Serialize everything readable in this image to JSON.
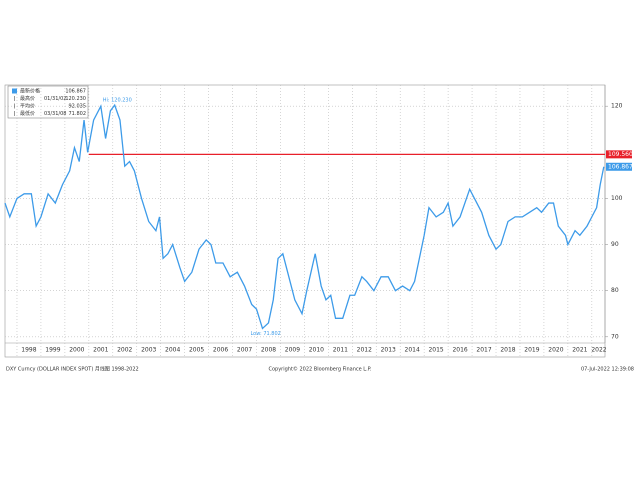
{
  "chart_data": {
    "type": "line",
    "legend": [
      {
        "name": "最新价格",
        "value": "106.867"
      },
      {
        "name": "最高价",
        "date": "01/31/02",
        "value": "120.230"
      },
      {
        "name": "平均价",
        "value": "92.035"
      },
      {
        "name": "最低价",
        "date": "03/31/08",
        "value": "71.802"
      }
    ],
    "annotations": [
      {
        "text": "Hi: 120.230",
        "x": 2002.08,
        "y": 120.23
      },
      {
        "text": "Low: 71.802",
        "x": 2008.25,
        "y": 71.802
      }
    ],
    "reference_line": {
      "value": 109.56,
      "label": "109.560",
      "color": "#e8202a",
      "start": 2001.0
    },
    "last_label": "106.867",
    "footer": {
      "left": "DXY Curncy (DOLLAR INDEX SPOT) 月线图 1998-2022",
      "center": "Copyright© 2022 Bloomberg Finance L.P.",
      "right": "07-Jul-2022 12:39:08"
    },
    "xlim": [
      1997.5,
      2022.55
    ],
    "xgrid": [
      1998,
      1999,
      2000,
      2001,
      2002,
      2003,
      2004,
      2005,
      2006,
      2007,
      2008,
      2009,
      2010,
      2011,
      2012,
      2013,
      2014,
      2015,
      2016,
      2017,
      2018,
      2019,
      2020,
      2021,
      2022
    ],
    "xticks": [
      {
        "value": 1998.5,
        "label": "1998"
      },
      {
        "value": 1999.5,
        "label": "1999"
      },
      {
        "value": 2000.5,
        "label": "2000"
      },
      {
        "value": 2001.5,
        "label": "2001"
      },
      {
        "value": 2002.5,
        "label": "2002"
      },
      {
        "value": 2003.5,
        "label": "2003"
      },
      {
        "value": 2004.5,
        "label": "2004"
      },
      {
        "value": 2005.5,
        "label": "2005"
      },
      {
        "value": 2006.5,
        "label": "2006"
      },
      {
        "value": 2007.5,
        "label": "2007"
      },
      {
        "value": 2008.5,
        "label": "2008"
      },
      {
        "value": 2009.5,
        "label": "2009"
      },
      {
        "value": 2010.5,
        "label": "2010"
      },
      {
        "value": 2011.5,
        "label": "2011"
      },
      {
        "value": 2012.5,
        "label": "2012"
      },
      {
        "value": 2013.5,
        "label": "2013"
      },
      {
        "value": 2014.5,
        "label": "2014"
      },
      {
        "value": 2015.5,
        "label": "2015"
      },
      {
        "value": 2016.5,
        "label": "2016"
      },
      {
        "value": 2017.5,
        "label": "2017"
      },
      {
        "value": 2018.5,
        "label": "2018"
      },
      {
        "value": 2019.5,
        "label": "2019"
      },
      {
        "value": 2020.5,
        "label": "2020"
      },
      {
        "value": 2021.5,
        "label": "2021"
      },
      {
        "value": 2022.3,
        "label": "2022"
      }
    ],
    "ylim": [
      69.3,
      124.6
    ],
    "yticks": [
      70,
      80,
      90,
      100,
      120
    ],
    "grid": true,
    "x": [
      1997.5,
      1997.7,
      1998.0,
      1998.3,
      1998.6,
      1998.8,
      1999.0,
      1999.3,
      1999.6,
      1999.9,
      2000.2,
      2000.4,
      2000.6,
      2000.8,
      2000.95,
      2001.2,
      2001.5,
      2001.7,
      2001.9,
      2002.08,
      2002.3,
      2002.5,
      2002.7,
      2002.9,
      2003.2,
      2003.5,
      2003.8,
      2003.95,
      2004.1,
      2004.3,
      2004.5,
      2004.8,
      2005.0,
      2005.3,
      2005.6,
      2005.9,
      2006.1,
      2006.3,
      2006.6,
      2006.9,
      2007.2,
      2007.5,
      2007.8,
      2008.0,
      2008.25,
      2008.5,
      2008.7,
      2008.9,
      2009.1,
      2009.3,
      2009.6,
      2009.9,
      2010.1,
      2010.45,
      2010.7,
      2010.9,
      2011.1,
      2011.3,
      2011.6,
      2011.9,
      2012.1,
      2012.4,
      2012.6,
      2012.9,
      2013.2,
      2013.5,
      2013.8,
      2014.1,
      2014.4,
      2014.6,
      2014.8,
      2015.0,
      2015.2,
      2015.5,
      2015.8,
      2016.0,
      2016.2,
      2016.5,
      2016.9,
      2017.1,
      2017.4,
      2017.7,
      2018.0,
      2018.2,
      2018.5,
      2018.8,
      2019.1,
      2019.4,
      2019.7,
      2019.9,
      2020.2,
      2020.4,
      2020.6,
      2020.9,
      2021.0,
      2021.3,
      2021.5,
      2021.8,
      2022.0,
      2022.2,
      2022.35,
      2022.5
    ],
    "series": [
      {
        "name": "最新价格",
        "color": "#3d9be9",
        "values": [
          99,
          96,
          100,
          101,
          101,
          94,
          96,
          101,
          99,
          103,
          106,
          111,
          108,
          117,
          110,
          117,
          120,
          113,
          119,
          120.23,
          117,
          107,
          108,
          106,
          100,
          95,
          93,
          96,
          87,
          88,
          90,
          85,
          82,
          84,
          89,
          91,
          90,
          86,
          86,
          83,
          84,
          81,
          77,
          76,
          71.802,
          73,
          78,
          87,
          88,
          84,
          78,
          75,
          80,
          88,
          81,
          78,
          79,
          74,
          74,
          79,
          79,
          83,
          82,
          80,
          83,
          83,
          80,
          81,
          80,
          82,
          87,
          92,
          98,
          96,
          97,
          99,
          94,
          96,
          102,
          100,
          97,
          92,
          89,
          90,
          95,
          96,
          96,
          97,
          98,
          97,
          99,
          99,
          94,
          92,
          90,
          93,
          92,
          94,
          96,
          98,
          103,
          106.867
        ]
      }
    ]
  }
}
